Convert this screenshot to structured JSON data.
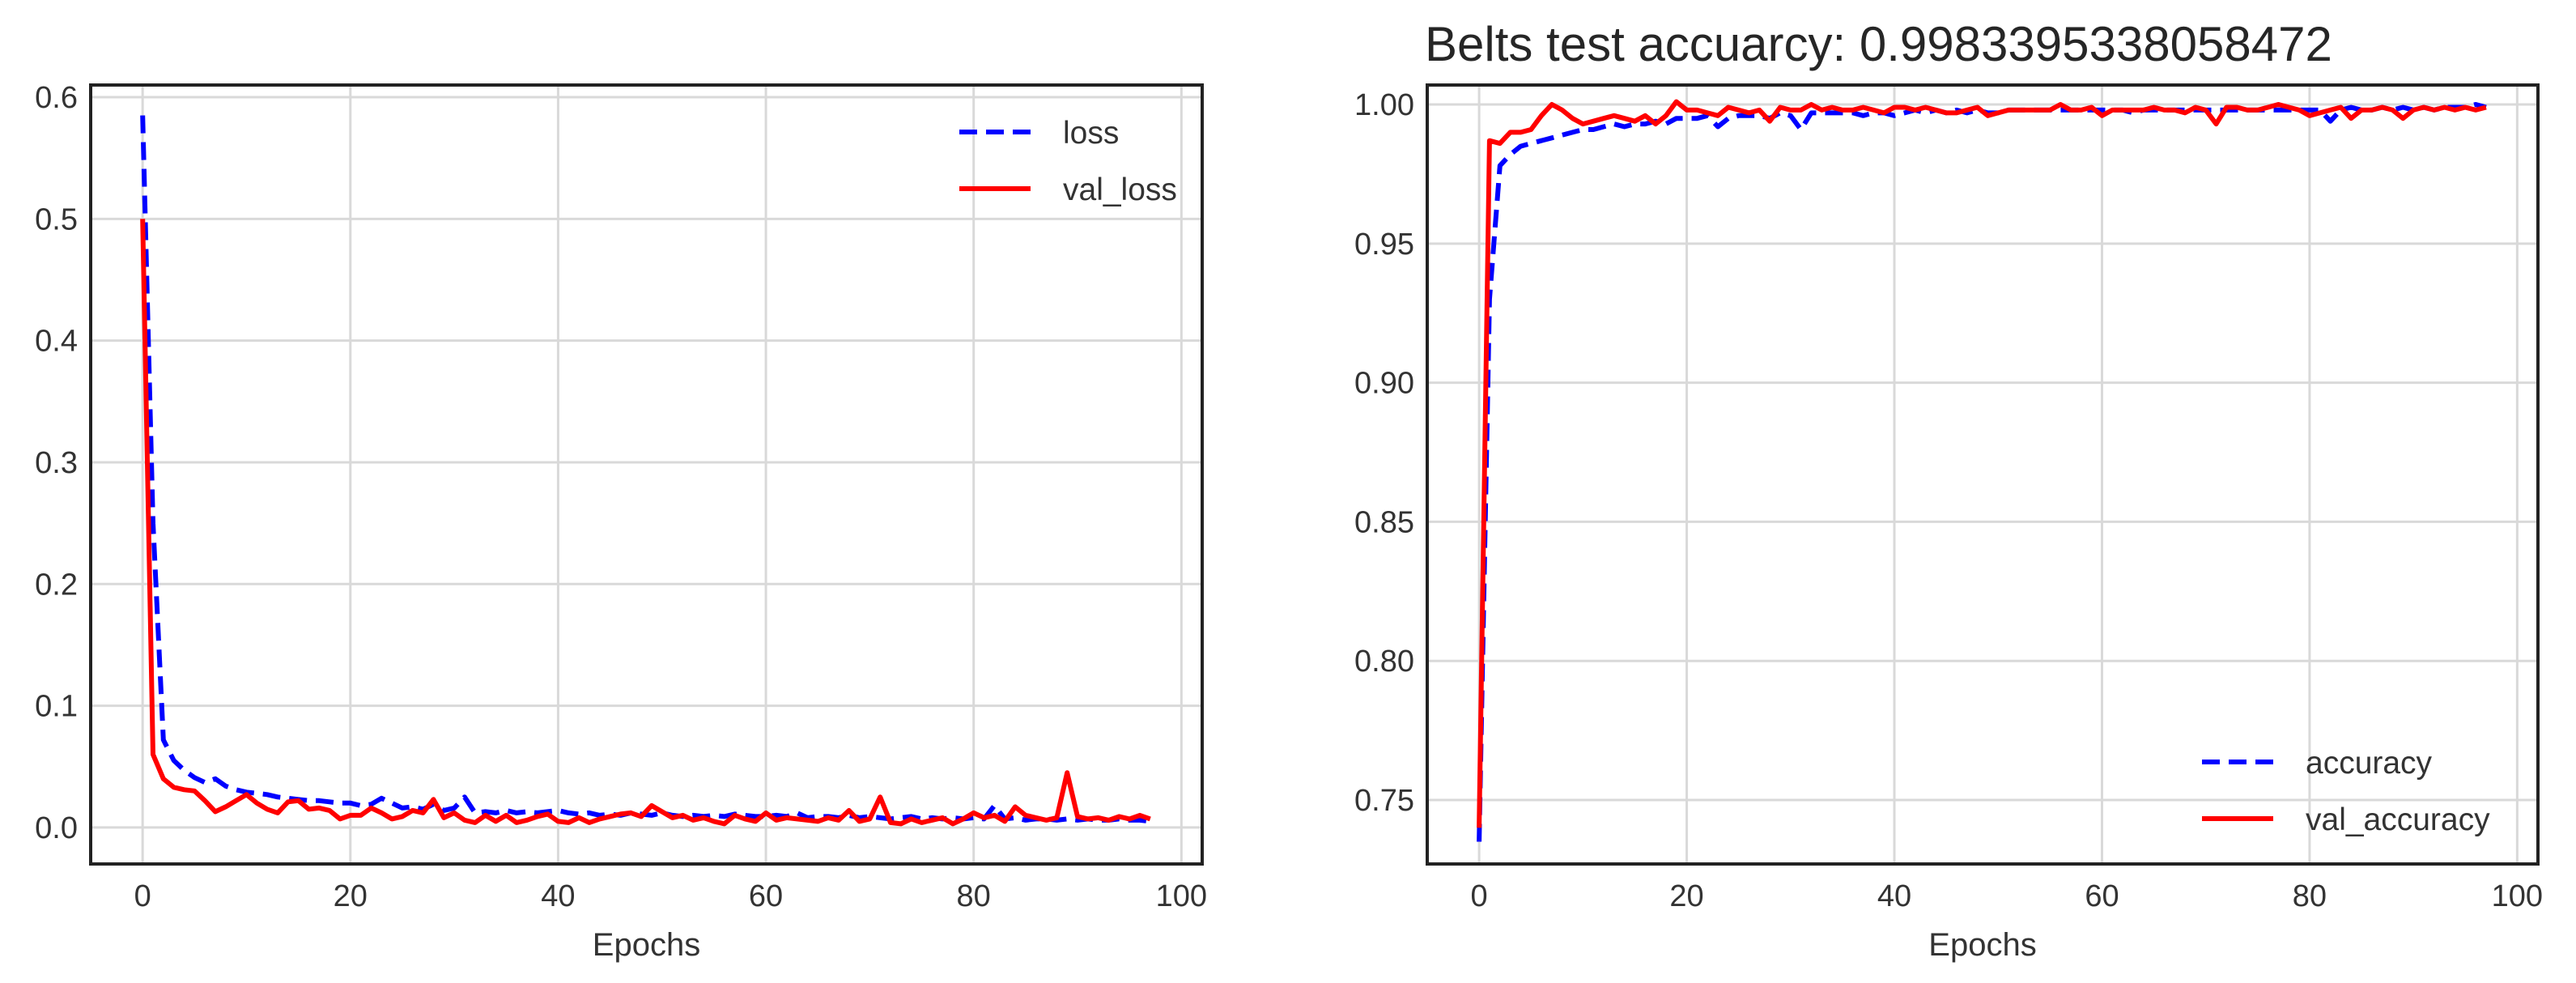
{
  "chart_data": [
    {
      "type": "line",
      "title": "",
      "xlabel": "Epochs",
      "ylabel": "",
      "xlim": [
        -5,
        102
      ],
      "ylim": [
        -0.03,
        0.61
      ],
      "xticks": [
        0,
        20,
        40,
        60,
        80,
        100
      ],
      "yticks": [
        0.0,
        0.1,
        0.2,
        0.3,
        0.4,
        0.5,
        0.6
      ],
      "ytick_labels": [
        "0.0",
        "0.1",
        "0.2",
        "0.3",
        "0.4",
        "0.5",
        "0.6"
      ],
      "grid": true,
      "legend": "top-right",
      "series": [
        {
          "name": "loss",
          "color": "#0000ff",
          "style": "dashed",
          "x": [
            0,
            1,
            2,
            3,
            4,
            5,
            6,
            7,
            8,
            9,
            10,
            11,
            12,
            13,
            14,
            15,
            16,
            17,
            18,
            19,
            20,
            21,
            22,
            23,
            24,
            25,
            26,
            27,
            28,
            29,
            30,
            31,
            32,
            33,
            34,
            35,
            36,
            37,
            38,
            39,
            40,
            41,
            42,
            43,
            44,
            45,
            46,
            47,
            48,
            49,
            50,
            51,
            52,
            53,
            54,
            55,
            56,
            57,
            58,
            59,
            60,
            61,
            62,
            63,
            64,
            65,
            66,
            67,
            68,
            69,
            70,
            71,
            72,
            73,
            74,
            75,
            76,
            77,
            78,
            79,
            80,
            81,
            82,
            83,
            84,
            85,
            86,
            87,
            88,
            89,
            90,
            91,
            92,
            93,
            94,
            95,
            96,
            97
          ],
          "y": [
            0.585,
            0.25,
            0.072,
            0.055,
            0.047,
            0.041,
            0.037,
            0.04,
            0.034,
            0.031,
            0.029,
            0.028,
            0.027,
            0.025,
            0.024,
            0.023,
            0.022,
            0.022,
            0.021,
            0.02,
            0.02,
            0.018,
            0.019,
            0.024,
            0.02,
            0.016,
            0.017,
            0.015,
            0.019,
            0.014,
            0.016,
            0.025,
            0.012,
            0.013,
            0.012,
            0.014,
            0.012,
            0.013,
            0.012,
            0.013,
            0.014,
            0.012,
            0.011,
            0.012,
            0.01,
            0.011,
            0.01,
            0.012,
            0.011,
            0.01,
            0.012,
            0.01,
            0.009,
            0.01,
            0.009,
            0.01,
            0.009,
            0.011,
            0.01,
            0.009,
            0.009,
            0.01,
            0.009,
            0.012,
            0.008,
            0.009,
            0.009,
            0.008,
            0.01,
            0.008,
            0.009,
            0.008,
            0.007,
            0.008,
            0.009,
            0.007,
            0.008,
            0.007,
            0.008,
            0.007,
            0.008,
            0.007,
            0.018,
            0.007,
            0.008,
            0.006,
            0.007,
            0.007,
            0.006,
            0.007,
            0.006,
            0.007,
            0.006,
            0.006,
            0.007,
            0.006,
            0.006,
            0.005
          ]
        },
        {
          "name": "val_loss",
          "color": "#ff0000",
          "style": "solid",
          "x": [
            0,
            1,
            2,
            3,
            4,
            5,
            6,
            7,
            8,
            9,
            10,
            11,
            12,
            13,
            14,
            15,
            16,
            17,
            18,
            19,
            20,
            21,
            22,
            23,
            24,
            25,
            26,
            27,
            28,
            29,
            30,
            31,
            32,
            33,
            34,
            35,
            36,
            37,
            38,
            39,
            40,
            41,
            42,
            43,
            44,
            45,
            46,
            47,
            48,
            49,
            50,
            51,
            52,
            53,
            54,
            55,
            56,
            57,
            58,
            59,
            60,
            61,
            62,
            63,
            64,
            65,
            66,
            67,
            68,
            69,
            70,
            71,
            72,
            73,
            74,
            75,
            76,
            77,
            78,
            79,
            80,
            81,
            82,
            83,
            84,
            85,
            86,
            87,
            88,
            89,
            90,
            91,
            92,
            93,
            94,
            95,
            96,
            97
          ],
          "y": [
            0.5,
            0.06,
            0.04,
            0.033,
            0.031,
            0.03,
            0.022,
            0.013,
            0.017,
            0.022,
            0.027,
            0.02,
            0.015,
            0.012,
            0.021,
            0.022,
            0.015,
            0.016,
            0.014,
            0.007,
            0.01,
            0.01,
            0.016,
            0.012,
            0.007,
            0.009,
            0.014,
            0.012,
            0.023,
            0.008,
            0.012,
            0.006,
            0.004,
            0.01,
            0.005,
            0.01,
            0.004,
            0.006,
            0.009,
            0.011,
            0.005,
            0.004,
            0.008,
            0.004,
            0.007,
            0.009,
            0.011,
            0.012,
            0.009,
            0.018,
            0.013,
            0.008,
            0.01,
            0.006,
            0.008,
            0.005,
            0.003,
            0.01,
            0.007,
            0.005,
            0.012,
            0.006,
            0.008,
            0.007,
            0.006,
            0.005,
            0.008,
            0.006,
            0.014,
            0.005,
            0.007,
            0.025,
            0.004,
            0.003,
            0.007,
            0.004,
            0.006,
            0.008,
            0.003,
            0.007,
            0.012,
            0.008,
            0.01,
            0.005,
            0.017,
            0.01,
            0.008,
            0.006,
            0.008,
            0.045,
            0.009,
            0.007,
            0.008,
            0.006,
            0.009,
            0.007,
            0.01,
            0.007
          ]
        }
      ]
    },
    {
      "type": "line",
      "title": "Belts test accuarcy: 0.9983395338058472",
      "xlabel": "Epochs",
      "ylabel": "",
      "xlim": [
        -5,
        102
      ],
      "ylim": [
        0.727,
        1.007
      ],
      "xticks": [
        0,
        20,
        40,
        60,
        80,
        100
      ],
      "yticks": [
        0.75,
        0.8,
        0.85,
        0.9,
        0.95,
        1.0
      ],
      "ytick_labels": [
        "0.75",
        "0.80",
        "0.85",
        "0.90",
        "0.95",
        "1.00"
      ],
      "grid": true,
      "legend": "bottom-right",
      "series": [
        {
          "name": "accuracy",
          "color": "#0000ff",
          "style": "dashed",
          "x": [
            0,
            1,
            2,
            3,
            4,
            5,
            6,
            7,
            8,
            9,
            10,
            11,
            12,
            13,
            14,
            15,
            16,
            17,
            18,
            19,
            20,
            21,
            22,
            23,
            24,
            25,
            26,
            27,
            28,
            29,
            30,
            31,
            32,
            33,
            34,
            35,
            36,
            37,
            38,
            39,
            40,
            41,
            42,
            43,
            44,
            45,
            46,
            47,
            48,
            49,
            50,
            51,
            52,
            53,
            54,
            55,
            56,
            57,
            58,
            59,
            60,
            61,
            62,
            63,
            64,
            65,
            66,
            67,
            68,
            69,
            70,
            71,
            72,
            73,
            74,
            75,
            76,
            77,
            78,
            79,
            80,
            81,
            82,
            83,
            84,
            85,
            86,
            87,
            88,
            89,
            90,
            91,
            92,
            93,
            94,
            95,
            96,
            97
          ],
          "y": [
            0.735,
            0.93,
            0.978,
            0.982,
            0.985,
            0.986,
            0.987,
            0.988,
            0.989,
            0.99,
            0.991,
            0.991,
            0.992,
            0.993,
            0.992,
            0.993,
            0.993,
            0.994,
            0.993,
            0.995,
            0.995,
            0.995,
            0.996,
            0.992,
            0.995,
            0.996,
            0.996,
            0.996,
            0.995,
            0.997,
            0.996,
            0.991,
            0.997,
            0.997,
            0.997,
            0.997,
            0.997,
            0.996,
            0.997,
            0.997,
            0.996,
            0.997,
            0.998,
            0.997,
            0.998,
            0.997,
            0.998,
            0.997,
            0.998,
            0.997,
            0.997,
            0.998,
            0.998,
            0.998,
            0.998,
            0.998,
            0.998,
            0.998,
            0.998,
            0.998,
            0.998,
            0.998,
            0.998,
            0.997,
            0.998,
            0.998,
            0.998,
            0.998,
            0.998,
            0.998,
            0.998,
            0.998,
            0.998,
            0.998,
            0.998,
            0.998,
            0.998,
            0.998,
            0.998,
            0.998,
            0.998,
            0.998,
            0.994,
            0.998,
            0.999,
            0.998,
            0.998,
            0.999,
            0.998,
            0.999,
            0.998,
            0.999,
            0.998,
            0.999,
            0.999,
            0.999,
            1.0,
            0.999
          ]
        },
        {
          "name": "val_accuracy",
          "color": "#ff0000",
          "style": "solid",
          "x": [
            0,
            1,
            2,
            3,
            4,
            5,
            6,
            7,
            8,
            9,
            10,
            11,
            12,
            13,
            14,
            15,
            16,
            17,
            18,
            19,
            20,
            21,
            22,
            23,
            24,
            25,
            26,
            27,
            28,
            29,
            30,
            31,
            32,
            33,
            34,
            35,
            36,
            37,
            38,
            39,
            40,
            41,
            42,
            43,
            44,
            45,
            46,
            47,
            48,
            49,
            50,
            51,
            52,
            53,
            54,
            55,
            56,
            57,
            58,
            59,
            60,
            61,
            62,
            63,
            64,
            65,
            66,
            67,
            68,
            69,
            70,
            71,
            72,
            73,
            74,
            75,
            76,
            77,
            78,
            79,
            80,
            81,
            82,
            83,
            84,
            85,
            86,
            87,
            88,
            89,
            90,
            91,
            92,
            93,
            94,
            95,
            96,
            97
          ],
          "y": [
            0.74,
            0.987,
            0.986,
            0.99,
            0.99,
            0.991,
            0.996,
            1.0,
            0.998,
            0.995,
            0.993,
            0.994,
            0.995,
            0.996,
            0.995,
            0.994,
            0.996,
            0.993,
            0.996,
            1.001,
            0.998,
            0.998,
            0.997,
            0.996,
            0.999,
            0.998,
            0.997,
            0.998,
            0.994,
            0.999,
            0.998,
            0.998,
            1.0,
            0.998,
            0.999,
            0.998,
            0.998,
            0.999,
            0.998,
            0.997,
            0.999,
            0.999,
            0.998,
            0.999,
            0.998,
            0.997,
            0.997,
            0.998,
            0.999,
            0.996,
            0.997,
            0.998,
            0.998,
            0.998,
            0.998,
            0.998,
            1.0,
            0.998,
            0.998,
            0.999,
            0.996,
            0.998,
            0.998,
            0.998,
            0.998,
            0.999,
            0.998,
            0.998,
            0.997,
            0.999,
            0.998,
            0.993,
            0.999,
            0.999,
            0.998,
            0.998,
            0.999,
            1.0,
            0.999,
            0.998,
            0.996,
            0.997,
            0.998,
            0.999,
            0.995,
            0.998,
            0.998,
            0.999,
            0.998,
            0.995,
            0.998,
            0.999,
            0.998,
            0.999,
            0.998,
            0.999,
            0.998,
            0.999
          ]
        }
      ]
    }
  ]
}
